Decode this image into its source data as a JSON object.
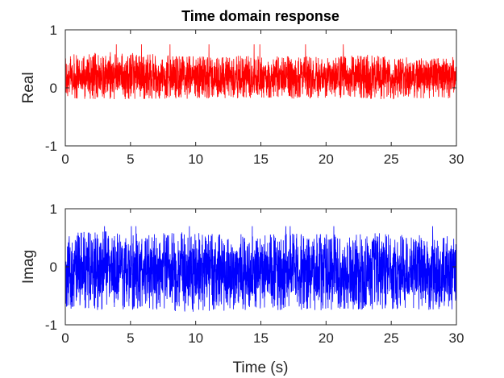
{
  "chart_data": [
    {
      "type": "line",
      "title": "Time domain response",
      "xlabel": "",
      "ylabel": "Real",
      "xlim": [
        0,
        30
      ],
      "ylim": [
        -1,
        1
      ],
      "x_ticks": [
        "0",
        "5",
        "10",
        "15",
        "20",
        "25",
        "30"
      ],
      "y_ticks": [
        "1",
        "0",
        "-1"
      ],
      "grid": false,
      "series": [
        {
          "color": "#ff0000",
          "signal": "dense noise",
          "approx_mean": 0.15,
          "approx_range": [
            -0.22,
            0.6
          ],
          "approx_peak": 0.75,
          "x": [
            0,
            3,
            6,
            9,
            12,
            15,
            18,
            21,
            24,
            27,
            30
          ],
          "upper_envelope": [
            0.58,
            0.62,
            0.6,
            0.56,
            0.55,
            0.56,
            0.55,
            0.56,
            0.58,
            0.52,
            0.54
          ],
          "lower_envelope": [
            -0.2,
            -0.2,
            -0.2,
            -0.19,
            -0.18,
            -0.18,
            -0.19,
            -0.18,
            -0.2,
            -0.19,
            -0.18
          ]
        }
      ]
    },
    {
      "type": "line",
      "title": "",
      "xlabel": "Time (s)",
      "ylabel": "Imag",
      "xlim": [
        0,
        30
      ],
      "ylim": [
        -1,
        1
      ],
      "x_ticks": [
        "0",
        "5",
        "10",
        "15",
        "20",
        "25",
        "30"
      ],
      "y_ticks": [
        "1",
        "0",
        "-1"
      ],
      "grid": false,
      "series": [
        {
          "color": "#0000ff",
          "signal": "dense noise",
          "approx_mean": 0.0,
          "approx_range": [
            -0.75,
            0.62
          ],
          "approx_peak": 0.7,
          "x": [
            0,
            3,
            6,
            9,
            12,
            15,
            18,
            21,
            24,
            27,
            30
          ],
          "upper_envelope": [
            0.6,
            0.62,
            0.58,
            0.6,
            0.58,
            0.55,
            0.58,
            0.56,
            0.58,
            0.56,
            0.55
          ],
          "lower_envelope": [
            -0.72,
            -0.75,
            -0.74,
            -0.78,
            -0.76,
            -0.75,
            -0.76,
            -0.74,
            -0.76,
            -0.75,
            -0.74
          ]
        }
      ]
    }
  ]
}
